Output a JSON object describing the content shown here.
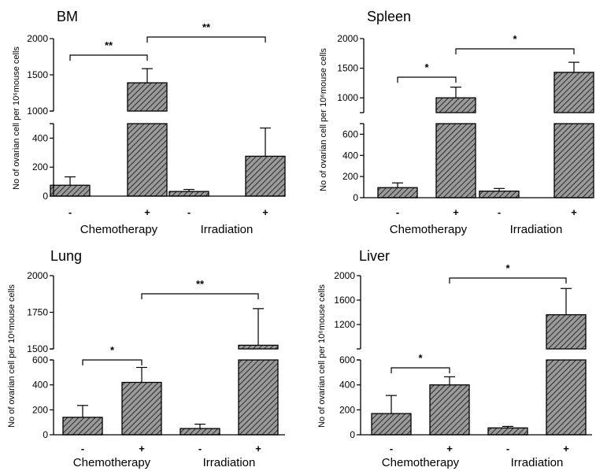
{
  "figure": {
    "ylabel": "No of ovarian cell per 10⁶mouse cells",
    "groups": [
      "Chemotherapy",
      "Irradiation"
    ],
    "signs": [
      "-",
      "+",
      "-",
      "+"
    ],
    "colors": {
      "bar_fill": "#9a9a9a",
      "hatch": "#2b2b2b",
      "stroke": "#000000"
    }
  },
  "chart_data": [
    {
      "type": "bar",
      "title": "BM",
      "ylabel": "No of ovarian cell per 10⁶mouse cells",
      "categories": [
        "Chemotherapy -",
        "Chemotherapy +",
        "Irradiation -",
        "Irradiation +"
      ],
      "values": [
        75,
        1390,
        32,
        275
      ],
      "errors": [
        58,
        195,
        14,
        195
      ],
      "broken_axis": {
        "lower": [
          0,
          500
        ],
        "upper": [
          1000,
          2000
        ]
      },
      "yticks_lower": [
        0,
        200,
        400
      ],
      "yticks_upper": [
        1000,
        1500,
        2000
      ],
      "significance": [
        {
          "from": 0,
          "to": 1,
          "label": "**"
        },
        {
          "from": 1,
          "to": 3,
          "label": "**"
        }
      ]
    },
    {
      "type": "bar",
      "title": "Spleen",
      "ylabel": "No of ovarian cell per 10⁶mouse cells",
      "categories": [
        "Chemotherapy -",
        "Chemotherapy +",
        "Irradiation -",
        "Irradiation +"
      ],
      "values": [
        95,
        1000,
        62,
        1430
      ],
      "errors": [
        45,
        180,
        25,
        170
      ],
      "broken_axis": {
        "lower": [
          0,
          700
        ],
        "upper": [
          750,
          2000
        ]
      },
      "yticks_lower": [
        0,
        200,
        400,
        600
      ],
      "yticks_upper": [
        1000,
        1500,
        2000
      ],
      "significance": [
        {
          "from": 0,
          "to": 1,
          "label": "*"
        },
        {
          "from": 1,
          "to": 3,
          "label": "*"
        }
      ]
    },
    {
      "type": "bar",
      "title": "Lung",
      "ylabel": "No of ovarian cell per 10⁶mouse cells",
      "categories": [
        "Chemotherapy -",
        "Chemotherapy +",
        "Irradiation -",
        "Irradiation +"
      ],
      "values": [
        140,
        420,
        50,
        1525
      ],
      "errors": [
        95,
        120,
        35,
        250
      ],
      "broken_axis": {
        "lower": [
          0,
          600
        ],
        "upper": [
          1500,
          2000
        ]
      },
      "yticks_lower": [
        0,
        200,
        400,
        600
      ],
      "yticks_upper": [
        1500,
        1750,
        2000
      ],
      "significance": [
        {
          "from": 0,
          "to": 1,
          "label": "*"
        },
        {
          "from": 1,
          "to": 3,
          "label": "**"
        }
      ]
    },
    {
      "type": "bar",
      "title": "Liver",
      "ylabel": "No of ovarian cell per 10⁶mouse cells",
      "categories": [
        "Chemotherapy -",
        "Chemotherapy +",
        "Irradiation -",
        "Irradiation +"
      ],
      "values": [
        170,
        400,
        55,
        1360
      ],
      "errors": [
        145,
        65,
        12,
        430
      ],
      "broken_axis": {
        "lower": [
          0,
          600
        ],
        "upper": [
          800,
          2000
        ]
      },
      "yticks_lower": [
        0,
        200,
        400,
        600
      ],
      "yticks_upper": [
        1200,
        1600,
        2000
      ],
      "significance": [
        {
          "from": 0,
          "to": 1,
          "label": "*"
        },
        {
          "from": 1,
          "to": 3,
          "label": "*"
        }
      ]
    }
  ]
}
